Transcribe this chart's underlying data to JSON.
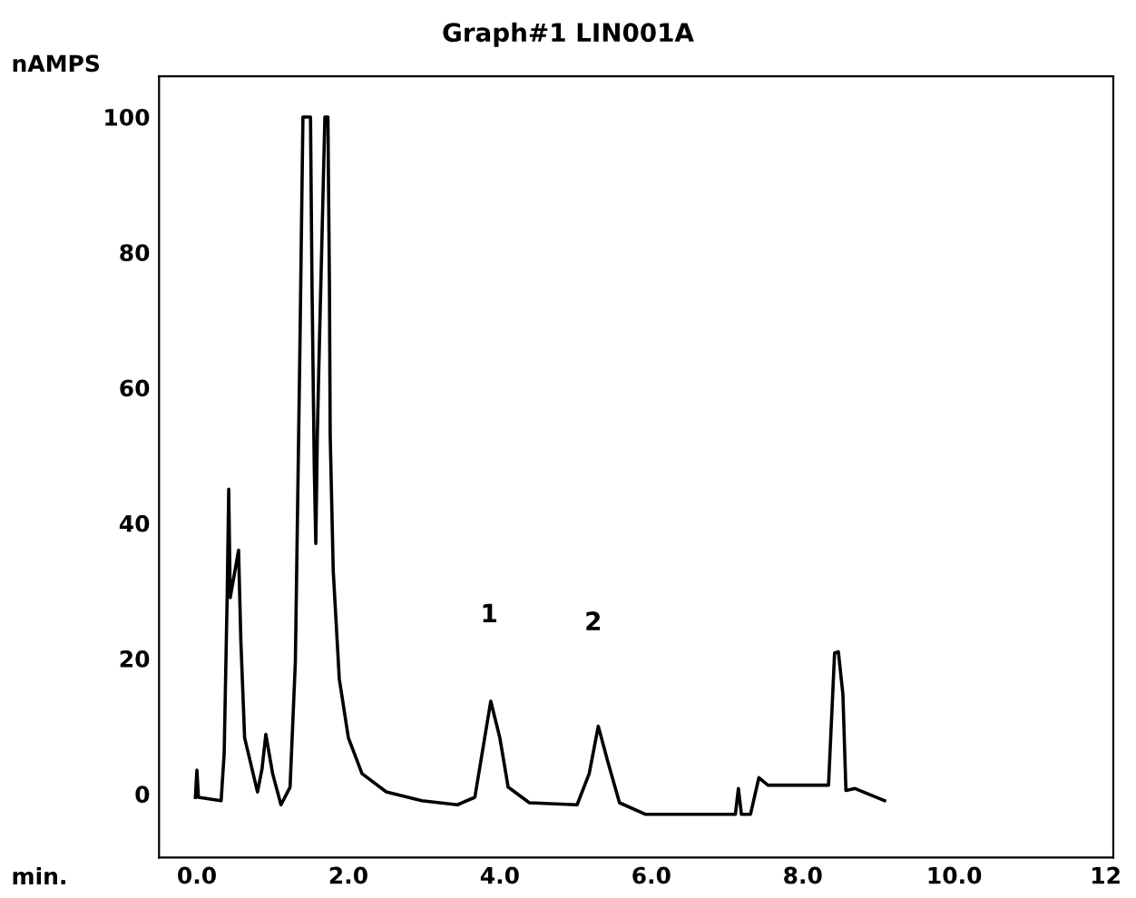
{
  "chart_data": {
    "type": "line",
    "title": "Graph#1 LIN001A",
    "ylabel": "nAMPS",
    "xlabel": "min.",
    "x": [
      -0.02,
      0.0,
      0.02,
      0.32,
      0.36,
      0.4,
      0.42,
      0.44,
      0.55,
      0.58,
      0.63,
      0.8,
      0.86,
      0.91,
      1.0,
      1.11,
      1.23,
      1.3,
      1.36,
      1.4,
      1.5,
      1.52,
      1.55,
      1.57,
      1.59,
      1.61,
      1.69,
      1.73,
      1.75,
      1.76,
      1.8,
      1.88,
      2.0,
      2.18,
      2.5,
      2.97,
      3.44,
      3.67,
      3.76,
      3.88,
      4.0,
      4.11,
      4.39,
      5.02,
      5.18,
      5.3,
      5.42,
      5.58,
      5.92,
      6.43,
      7.11,
      7.15,
      7.19,
      7.31,
      7.42,
      7.54,
      8.34,
      8.42,
      8.47,
      8.53,
      8.57,
      8.69,
      9.08
    ],
    "series": [
      {
        "color": "#000000",
        "values": [
          -0.5,
          3.5,
          -0.5,
          -1,
          6,
          29.4,
          45,
          29,
          36,
          22.7,
          8.3,
          0.3,
          3.7,
          8.8,
          3,
          -1.6,
          1,
          19.5,
          65.8,
          100,
          100,
          75,
          48,
          37,
          53,
          63,
          100,
          100,
          75,
          53,
          33,
          17,
          8.3,
          3,
          0.3,
          -1,
          -1.6,
          -0.5,
          5.6,
          13.7,
          8.3,
          1,
          -1.3,
          -1.6,
          3,
          10,
          5,
          -1.3,
          -3,
          -3,
          -3,
          0.8,
          -3,
          -3,
          2.4,
          1.3,
          1.3,
          20.8,
          21,
          14.7,
          0.5,
          0.8,
          -1
        ]
      }
    ],
    "xlim": [
      -0.5,
      12.1
    ],
    "ylim": [
      -9.4,
      106
    ],
    "xticks": [
      {
        "value": 0,
        "label": "0.0"
      },
      {
        "value": 2,
        "label": "2.0"
      },
      {
        "value": 4,
        "label": "4.0"
      },
      {
        "value": 6,
        "label": "6.0"
      },
      {
        "value": 8,
        "label": "8.0"
      },
      {
        "value": 10,
        "label": "10.0"
      },
      {
        "value": 12,
        "label": "12"
      }
    ],
    "yticks": [
      0,
      20,
      40,
      60,
      80,
      100
    ],
    "annotations": [
      "1",
      "2"
    ],
    "grid": false,
    "marker": "none",
    "line_style": "solid"
  }
}
